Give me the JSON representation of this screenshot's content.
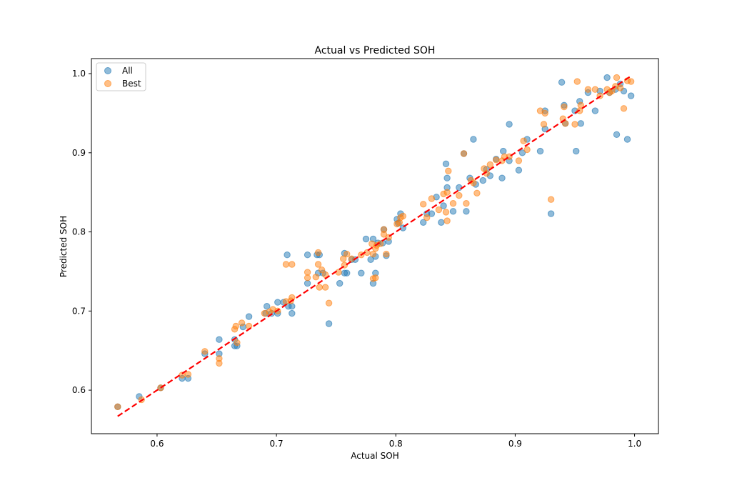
{
  "chart_data": {
    "type": "scatter",
    "title": "Actual vs Predicted SOH",
    "xlabel": "Actual SOH",
    "ylabel": "Predicted SOH",
    "xlim": [
      0.545,
      1.02
    ],
    "ylim": [
      0.545,
      1.019
    ],
    "xticks": [
      0.6,
      0.7,
      0.8,
      0.9,
      1.0
    ],
    "xtick_labels": [
      "0.6",
      "0.7",
      "0.8",
      "0.9",
      "1.0"
    ],
    "yticks": [
      0.6,
      0.7,
      0.8,
      0.9,
      1.0
    ],
    "ytick_labels": [
      "0.6",
      "0.7",
      "0.8",
      "0.9",
      "1.0"
    ],
    "legend_position": "top-left",
    "grid": false,
    "series": [
      {
        "name": "All",
        "color": "#1f77b4",
        "points": [
          [
            0.567,
            0.579
          ],
          [
            0.585,
            0.592
          ],
          [
            0.603,
            0.603
          ],
          [
            0.621,
            0.615
          ],
          [
            0.626,
            0.615
          ],
          [
            0.64,
            0.646
          ],
          [
            0.652,
            0.646
          ],
          [
            0.652,
            0.664
          ],
          [
            0.665,
            0.664
          ],
          [
            0.665,
            0.656
          ],
          [
            0.667,
            0.656
          ],
          [
            0.672,
            0.68
          ],
          [
            0.677,
            0.693
          ],
          [
            0.691,
            0.697
          ],
          [
            0.692,
            0.706
          ],
          [
            0.696,
            0.697
          ],
          [
            0.701,
            0.697
          ],
          [
            0.701,
            0.711
          ],
          [
            0.706,
            0.711
          ],
          [
            0.71,
            0.706
          ],
          [
            0.713,
            0.706
          ],
          [
            0.713,
            0.697
          ],
          [
            0.709,
            0.771
          ],
          [
            0.726,
            0.771
          ],
          [
            0.726,
            0.735
          ],
          [
            0.734,
            0.771
          ],
          [
            0.736,
            0.771
          ],
          [
            0.735,
            0.748
          ],
          [
            0.739,
            0.748
          ],
          [
            0.744,
            0.684
          ],
          [
            0.753,
            0.735
          ],
          [
            0.757,
            0.773
          ],
          [
            0.757,
            0.748
          ],
          [
            0.759,
            0.748
          ],
          [
            0.763,
            0.765
          ],
          [
            0.766,
            0.765
          ],
          [
            0.771,
            0.748
          ],
          [
            0.775,
            0.791
          ],
          [
            0.779,
            0.765
          ],
          [
            0.781,
            0.791
          ],
          [
            0.781,
            0.735
          ],
          [
            0.783,
            0.748
          ],
          [
            0.783,
            0.769
          ],
          [
            0.785,
            0.786
          ],
          [
            0.789,
            0.786
          ],
          [
            0.79,
            0.803
          ],
          [
            0.792,
            0.77
          ],
          [
            0.794,
            0.788
          ],
          [
            0.801,
            0.816
          ],
          [
            0.802,
            0.811
          ],
          [
            0.804,
            0.823
          ],
          [
            0.806,
            0.805
          ],
          [
            0.823,
            0.812
          ],
          [
            0.826,
            0.823
          ],
          [
            0.83,
            0.823
          ],
          [
            0.834,
            0.844
          ],
          [
            0.838,
            0.812
          ],
          [
            0.84,
            0.833
          ],
          [
            0.842,
            0.886
          ],
          [
            0.843,
            0.856
          ],
          [
            0.843,
            0.868
          ],
          [
            0.848,
            0.826
          ],
          [
            0.853,
            0.856
          ],
          [
            0.857,
            0.899
          ],
          [
            0.859,
            0.826
          ],
          [
            0.862,
            0.868
          ],
          [
            0.865,
            0.917
          ],
          [
            0.867,
            0.86
          ],
          [
            0.873,
            0.865
          ],
          [
            0.876,
            0.879
          ],
          [
            0.879,
            0.871
          ],
          [
            0.884,
            0.892
          ],
          [
            0.889,
            0.868
          ],
          [
            0.89,
            0.902
          ],
          [
            0.895,
            0.936
          ],
          [
            0.895,
            0.89
          ],
          [
            0.903,
            0.878
          ],
          [
            0.906,
            0.9
          ],
          [
            0.91,
            0.917
          ],
          [
            0.921,
            0.902
          ],
          [
            0.925,
            0.953
          ],
          [
            0.925,
            0.93
          ],
          [
            0.93,
            0.823
          ],
          [
            0.939,
            0.989
          ],
          [
            0.941,
            0.96
          ],
          [
            0.942,
            0.937
          ],
          [
            0.95,
            0.953
          ],
          [
            0.951,
            0.902
          ],
          [
            0.954,
            0.965
          ],
          [
            0.955,
            0.937
          ],
          [
            0.961,
            0.976
          ],
          [
            0.967,
            0.953
          ],
          [
            0.971,
            0.978
          ],
          [
            0.977,
            0.995
          ],
          [
            0.979,
            0.976
          ],
          [
            0.984,
            0.98
          ],
          [
            0.985,
            0.923
          ],
          [
            0.988,
            0.987
          ],
          [
            0.991,
            0.978
          ],
          [
            0.994,
            0.917
          ],
          [
            0.997,
            0.972
          ]
        ]
      },
      {
        "name": "Best",
        "color": "#ff7f0e",
        "points": [
          [
            0.567,
            0.579
          ],
          [
            0.587,
            0.588
          ],
          [
            0.603,
            0.603
          ],
          [
            0.621,
            0.619
          ],
          [
            0.626,
            0.62
          ],
          [
            0.64,
            0.649
          ],
          [
            0.652,
            0.634
          ],
          [
            0.652,
            0.64
          ],
          [
            0.665,
            0.677
          ],
          [
            0.666,
            0.681
          ],
          [
            0.667,
            0.66
          ],
          [
            0.671,
            0.685
          ],
          [
            0.677,
            0.681
          ],
          [
            0.69,
            0.697
          ],
          [
            0.694,
            0.699
          ],
          [
            0.697,
            0.702
          ],
          [
            0.701,
            0.7
          ],
          [
            0.708,
            0.712
          ],
          [
            0.708,
            0.759
          ],
          [
            0.712,
            0.713
          ],
          [
            0.713,
            0.717
          ],
          [
            0.713,
            0.759
          ],
          [
            0.726,
            0.749
          ],
          [
            0.726,
            0.742
          ],
          [
            0.733,
            0.743
          ],
          [
            0.735,
            0.759
          ],
          [
            0.735,
            0.774
          ],
          [
            0.736,
            0.73
          ],
          [
            0.738,
            0.752
          ],
          [
            0.741,
            0.746
          ],
          [
            0.741,
            0.73
          ],
          [
            0.744,
            0.71
          ],
          [
            0.752,
            0.749
          ],
          [
            0.756,
            0.766
          ],
          [
            0.757,
            0.758
          ],
          [
            0.759,
            0.772
          ],
          [
            0.763,
            0.766
          ],
          [
            0.771,
            0.771
          ],
          [
            0.776,
            0.774
          ],
          [
            0.78,
            0.785
          ],
          [
            0.781,
            0.772
          ],
          [
            0.781,
            0.741
          ],
          [
            0.783,
            0.742
          ],
          [
            0.783,
            0.779
          ],
          [
            0.784,
            0.783
          ],
          [
            0.787,
            0.785
          ],
          [
            0.79,
            0.803
          ],
          [
            0.79,
            0.797
          ],
          [
            0.792,
            0.772
          ],
          [
            0.794,
            0.793
          ],
          [
            0.801,
            0.81
          ],
          [
            0.803,
            0.812
          ],
          [
            0.804,
            0.818
          ],
          [
            0.806,
            0.82
          ],
          [
            0.823,
            0.835
          ],
          [
            0.826,
            0.818
          ],
          [
            0.83,
            0.842
          ],
          [
            0.836,
            0.828
          ],
          [
            0.84,
            0.848
          ],
          [
            0.842,
            0.825
          ],
          [
            0.843,
            0.814
          ],
          [
            0.844,
            0.877
          ],
          [
            0.843,
            0.85
          ],
          [
            0.848,
            0.836
          ],
          [
            0.853,
            0.846
          ],
          [
            0.857,
            0.899
          ],
          [
            0.859,
            0.836
          ],
          [
            0.863,
            0.865
          ],
          [
            0.865,
            0.862
          ],
          [
            0.868,
            0.849
          ],
          [
            0.874,
            0.88
          ],
          [
            0.876,
            0.874
          ],
          [
            0.879,
            0.885
          ],
          [
            0.884,
            0.891
          ],
          [
            0.889,
            0.89
          ],
          [
            0.891,
            0.895
          ],
          [
            0.895,
            0.895
          ],
          [
            0.903,
            0.89
          ],
          [
            0.907,
            0.915
          ],
          [
            0.91,
            0.904
          ],
          [
            0.921,
            0.953
          ],
          [
            0.924,
            0.936
          ],
          [
            0.925,
            0.95
          ],
          [
            0.93,
            0.841
          ],
          [
            0.94,
            0.943
          ],
          [
            0.941,
            0.958
          ],
          [
            0.942,
            0.937
          ],
          [
            0.95,
            0.936
          ],
          [
            0.952,
            0.99
          ],
          [
            0.954,
            0.953
          ],
          [
            0.955,
            0.96
          ],
          [
            0.961,
            0.98
          ],
          [
            0.967,
            0.98
          ],
          [
            0.971,
            0.972
          ],
          [
            0.977,
            0.98
          ],
          [
            0.979,
            0.976
          ],
          [
            0.981,
            0.978
          ],
          [
            0.984,
            0.984
          ],
          [
            0.985,
            0.995
          ],
          [
            0.988,
            0.982
          ],
          [
            0.991,
            0.956
          ],
          [
            0.994,
            0.991
          ],
          [
            0.997,
            0.99
          ]
        ]
      }
    ],
    "reference_line": {
      "style": "dashed",
      "color": "#ff0000",
      "from": [
        0.567,
        0.567
      ],
      "to": [
        0.997,
        0.997
      ]
    }
  }
}
